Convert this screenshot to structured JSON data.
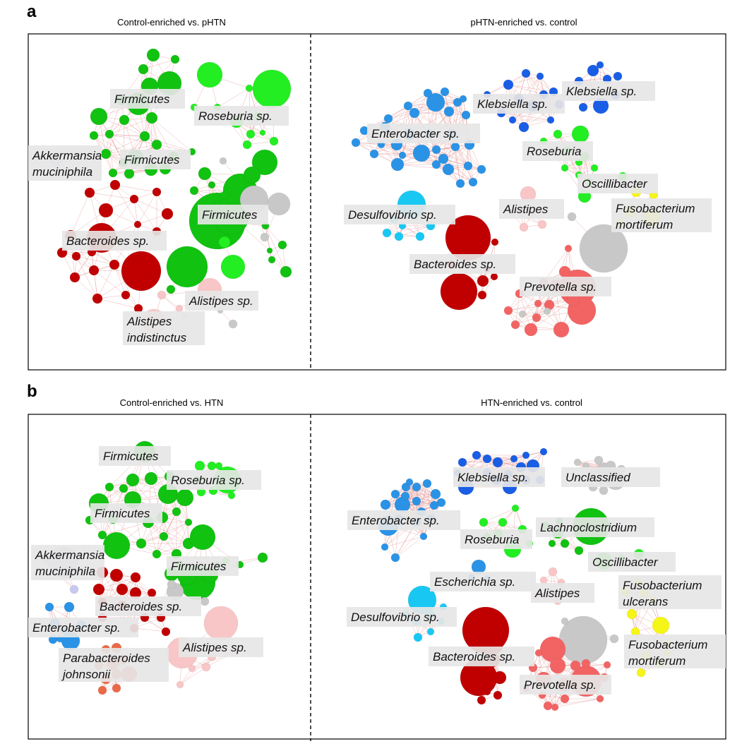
{
  "panels": [
    {
      "letter": "a",
      "left_title": "Control-enriched vs. pHTN",
      "right_title": "pHTN-enriched vs. control",
      "labels": [
        {
          "lines": [
            "Firmicutes"
          ]
        },
        {
          "lines": [
            "Roseburia sp."
          ]
        },
        {
          "lines": [
            "Akkermansia",
            "muciniphila"
          ]
        },
        {
          "lines": [
            "Firmicutes"
          ]
        },
        {
          "lines": [
            "Firmicutes"
          ]
        },
        {
          "lines": [
            "Bacteroides sp."
          ]
        },
        {
          "lines": [
            "Alistipes sp."
          ]
        },
        {
          "lines": [
            "Alistipes",
            "indistinctus"
          ]
        },
        {
          "lines": [
            "Klebsiella sp."
          ]
        },
        {
          "lines": [
            "Klebsiella sp."
          ]
        },
        {
          "lines": [
            "Enterobacter sp."
          ]
        },
        {
          "lines": [
            "Roseburia"
          ]
        },
        {
          "lines": [
            "Oscillibacter"
          ]
        },
        {
          "lines": [
            "Desulfovibrio sp."
          ]
        },
        {
          "lines": [
            "Alistipes"
          ]
        },
        {
          "lines": [
            "Fusobacterium",
            "mortiferum"
          ]
        },
        {
          "lines": [
            "Bacteroides sp."
          ]
        },
        {
          "lines": [
            "Prevotella sp."
          ]
        }
      ]
    },
    {
      "letter": "b",
      "left_title": "Control-enriched vs. HTN",
      "right_title": "HTN-enriched vs. control",
      "labels": [
        {
          "lines": [
            "Firmicutes"
          ]
        },
        {
          "lines": [
            "Roseburia sp."
          ]
        },
        {
          "lines": [
            "Firmicutes"
          ]
        },
        {
          "lines": [
            "Akkermansia",
            "muciniphila"
          ]
        },
        {
          "lines": [
            "Firmicutes"
          ]
        },
        {
          "lines": [
            "Bacteroides sp."
          ]
        },
        {
          "lines": [
            "Enterobacter sp."
          ]
        },
        {
          "lines": [
            "Parabacteroides",
            "johnsonii"
          ]
        },
        {
          "lines": [
            "Alistipes sp."
          ]
        },
        {
          "lines": [
            "Klebsiella sp."
          ]
        },
        {
          "lines": [
            "Unclassified"
          ]
        },
        {
          "lines": [
            "Enterobacter sp."
          ]
        },
        {
          "lines": [
            "Lachnoclostridium"
          ]
        },
        {
          "lines": [
            "Roseburia"
          ]
        },
        {
          "lines": [
            "Oscillibacter"
          ]
        },
        {
          "lines": [
            "Escherichia sp."
          ]
        },
        {
          "lines": [
            "Alistipes"
          ]
        },
        {
          "lines": [
            "Fusobacterium",
            "ulcerans"
          ]
        },
        {
          "lines": [
            "Desulfovibrio sp."
          ]
        },
        {
          "lines": [
            "Fusobacterium",
            "mortiferum"
          ]
        },
        {
          "lines": [
            "Bacteroides sp."
          ]
        },
        {
          "lines": [
            "Prevotella sp."
          ]
        }
      ]
    }
  ],
  "colors": {
    "firmicutes_green": "#11c211",
    "roseburia_green": "#22ee22",
    "bacteroides_red": "#c00000",
    "prevotella_red": "#f26464",
    "alistipes_pink": "#f8c6c6",
    "enterobacter_blue": "#2a93e6",
    "klebsiella_blue": "#1a5ee6",
    "desulfovibrio_cyan": "#19c8f2",
    "akkermansia_lavender": "#c8c8f0",
    "fusobacterium_yellow": "#f5f518",
    "parabacteroides_orange": "#ea6a48",
    "unclassified_gray": "#c8c8c8"
  }
}
